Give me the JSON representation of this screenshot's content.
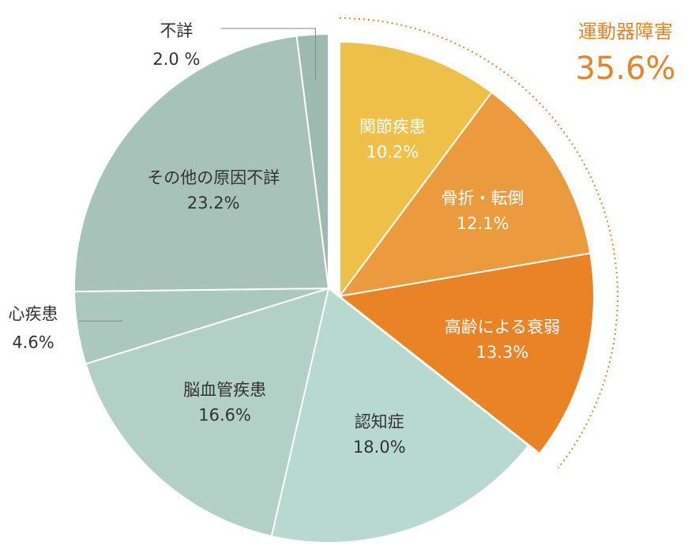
{
  "chart_data": {
    "type": "pie",
    "unit": "%",
    "slices": [
      {
        "label": "関節疾患",
        "value": 10.2,
        "value_text": "10.2%",
        "color": "#efc047",
        "exploded": true
      },
      {
        "label": "骨折・転倒",
        "value": 12.1,
        "value_text": "12.1%",
        "color": "#eb9b3d",
        "exploded": true
      },
      {
        "label": "高齢による衰弱",
        "value": 13.3,
        "value_text": "13.3%",
        "color": "#e98325",
        "exploded": true
      },
      {
        "label": "認知症",
        "value": 18.0,
        "value_text": "18.0%",
        "color": "#b7d9cf",
        "exploded": false
      },
      {
        "label": "脳血管疾患",
        "value": 16.6,
        "value_text": "16.6%",
        "color": "#b3d0c7",
        "exploded": false
      },
      {
        "label": "心疾患",
        "value": 4.6,
        "value_text": "4.6%",
        "color": "#abc8bf",
        "exploded": false
      },
      {
        "label": "その他の原因不詳",
        "value": 23.2,
        "value_text": "23.2%",
        "color": "#a6c2b9",
        "exploded": false
      },
      {
        "label": "不詳",
        "value": 2.0,
        "value_text": "2.0 %",
        "color": "#9dbab1",
        "exploded": false
      }
    ],
    "group": {
      "label": "運動器障害",
      "value": 35.6,
      "value_text": "35.6%",
      "color": "#e98325"
    },
    "label_color": "#333333",
    "inner_label_color": "#ffffff",
    "start": "12 o'clock",
    "direction": "clockwise"
  }
}
